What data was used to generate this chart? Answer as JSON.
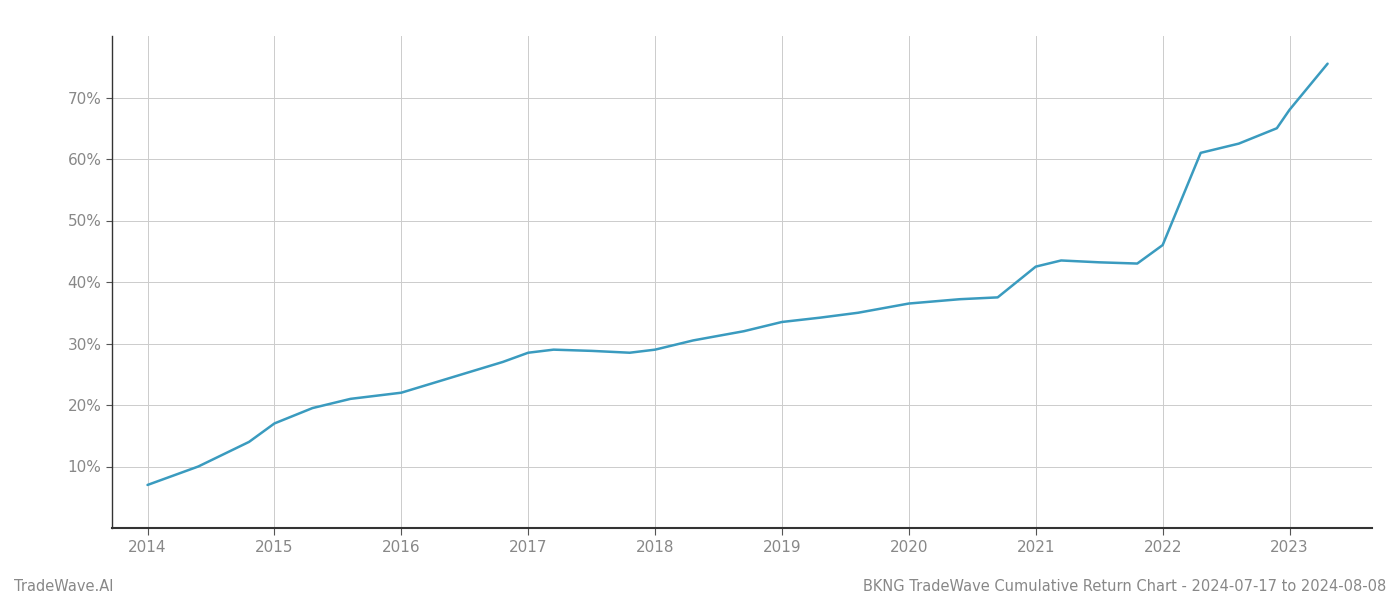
{
  "x_years": [
    2014.0,
    2014.4,
    2014.8,
    2015.0,
    2015.3,
    2015.6,
    2016.0,
    2016.4,
    2016.8,
    2017.0,
    2017.2,
    2017.5,
    2017.8,
    2018.0,
    2018.3,
    2018.7,
    2019.0,
    2019.3,
    2019.6,
    2020.0,
    2020.4,
    2020.7,
    2021.0,
    2021.2,
    2021.5,
    2021.8,
    2022.0,
    2022.3,
    2022.6,
    2022.9,
    2023.0,
    2023.3
  ],
  "y_values": [
    7.0,
    10.0,
    14.0,
    17.0,
    19.5,
    21.0,
    22.0,
    24.5,
    27.0,
    28.5,
    29.0,
    28.8,
    28.5,
    29.0,
    30.5,
    32.0,
    33.5,
    34.2,
    35.0,
    36.5,
    37.2,
    37.5,
    42.5,
    43.5,
    43.2,
    43.0,
    46.0,
    61.0,
    62.5,
    65.0,
    68.0,
    75.5
  ],
  "line_color": "#3a9bbf",
  "line_width": 1.8,
  "background_color": "#ffffff",
  "grid_color": "#cccccc",
  "title": "BKNG TradeWave Cumulative Return Chart - 2024-07-17 to 2024-08-08",
  "title_fontsize": 10.5,
  "watermark": "TradeWave.AI",
  "watermark_fontsize": 10.5,
  "x_min": 2013.72,
  "x_max": 2023.65,
  "y_min": 0,
  "y_max": 80,
  "yticks": [
    10,
    20,
    30,
    40,
    50,
    60,
    70
  ],
  "xticks": [
    2014,
    2015,
    2016,
    2017,
    2018,
    2019,
    2020,
    2021,
    2022,
    2023
  ],
  "tick_label_color": "#888888",
  "tick_fontsize": 11
}
